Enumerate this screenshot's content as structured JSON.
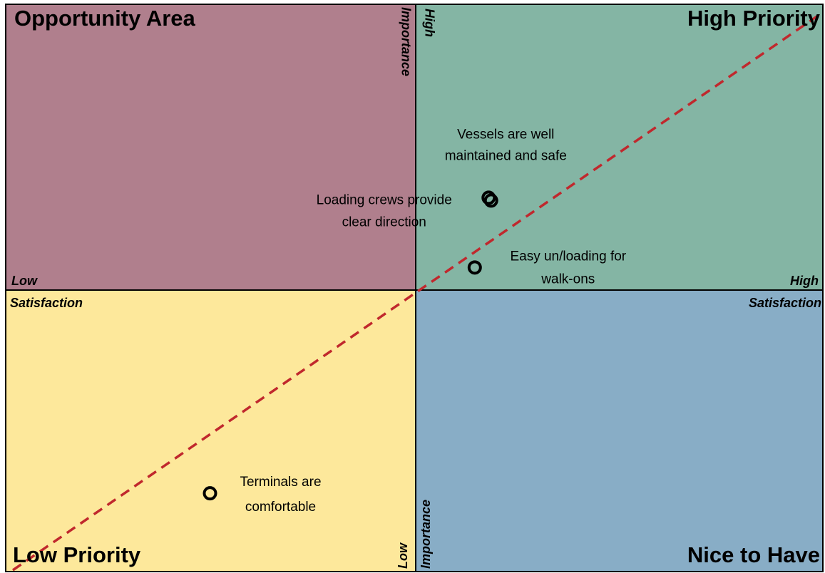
{
  "chart_data": {
    "type": "scatter",
    "quadrants": {
      "top_left": "Opportunity Area",
      "top_right": "High Priority",
      "bottom_left": "Low Priority",
      "bottom_right": "Nice to Have"
    },
    "quadrant_colors": {
      "top_left": "#b07f8d",
      "top_right": "#84b5a4",
      "bottom_left": "#fde89b",
      "bottom_right": "#88adc6"
    },
    "x_axis": {
      "label": "Satisfaction",
      "low": "Low",
      "high": "High"
    },
    "y_axis": {
      "label": "Importance",
      "low": "Low",
      "high": "High"
    },
    "xlim": [
      0,
      10
    ],
    "ylim": [
      0,
      10
    ],
    "diagonal_color": "#c0282d",
    "series": [
      {
        "marker_color": "#000000",
        "x": [
          5.91,
          5.94,
          5.74,
          2.5
        ],
        "values": [
          6.59,
          6.54,
          5.36,
          1.38
        ],
        "labels": [
          [
            "Vessels are well",
            "maintained and safe"
          ],
          [
            "Loading crews provide",
            "clear direction"
          ],
          [
            "Easy un/loading for",
            "walk-ons"
          ],
          [
            "Terminals are",
            "comfortable"
          ]
        ]
      }
    ]
  }
}
